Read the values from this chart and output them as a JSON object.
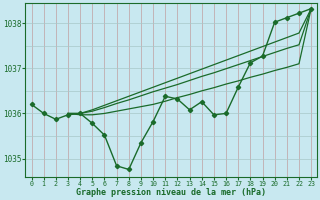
{
  "xlabel": "Graphe pression niveau de la mer (hPa)",
  "bg_color": "#c8e8f0",
  "grid_color_v": "#c0a0a0",
  "grid_color_h": "#a8c8c8",
  "line_color": "#1a6b2a",
  "text_color": "#1a6b2a",
  "x": [
    0,
    1,
    2,
    3,
    4,
    5,
    6,
    7,
    8,
    9,
    10,
    11,
    12,
    13,
    14,
    15,
    16,
    17,
    18,
    19,
    20,
    21,
    22,
    23
  ],
  "y_main": [
    1036.2,
    1036.0,
    1035.87,
    1035.97,
    1036.0,
    1035.78,
    1035.52,
    1034.84,
    1034.76,
    1035.35,
    1035.82,
    1036.38,
    1036.32,
    1036.08,
    1036.26,
    1035.97,
    1036.0,
    1036.58,
    1037.12,
    1037.27,
    1038.02,
    1038.12,
    1038.22,
    1038.32
  ],
  "y_line1_start_x": 3,
  "y_line1": [
    1036.0,
    1036.0,
    1036.08,
    1036.18,
    1036.28,
    1036.38,
    1036.48,
    1036.58,
    1036.68,
    1036.78,
    1036.88,
    1036.98,
    1037.08,
    1037.18,
    1037.28,
    1037.38,
    1037.48,
    1037.58,
    1037.68,
    1037.78,
    1038.32
  ],
  "y_line2_start_x": 3,
  "y_line2": [
    1036.0,
    1036.0,
    1036.05,
    1036.13,
    1036.22,
    1036.3,
    1036.39,
    1036.48,
    1036.56,
    1036.64,
    1036.73,
    1036.82,
    1036.9,
    1036.99,
    1037.08,
    1037.17,
    1037.26,
    1037.35,
    1037.44,
    1037.52,
    1038.32
  ],
  "y_line3_start_x": 3,
  "y_line3": [
    1036.0,
    1035.97,
    1035.97,
    1036.0,
    1036.05,
    1036.1,
    1036.15,
    1036.2,
    1036.27,
    1036.35,
    1036.42,
    1036.5,
    1036.57,
    1036.65,
    1036.72,
    1036.8,
    1036.87,
    1036.95,
    1037.02,
    1037.1,
    1038.32
  ],
  "ylim": [
    1034.6,
    1038.45
  ],
  "yticks": [
    1035,
    1036,
    1037,
    1038
  ],
  "xticks": [
    0,
    1,
    2,
    3,
    4,
    5,
    6,
    7,
    8,
    9,
    10,
    11,
    12,
    13,
    14,
    15,
    16,
    17,
    18,
    19,
    20,
    21,
    22,
    23
  ]
}
